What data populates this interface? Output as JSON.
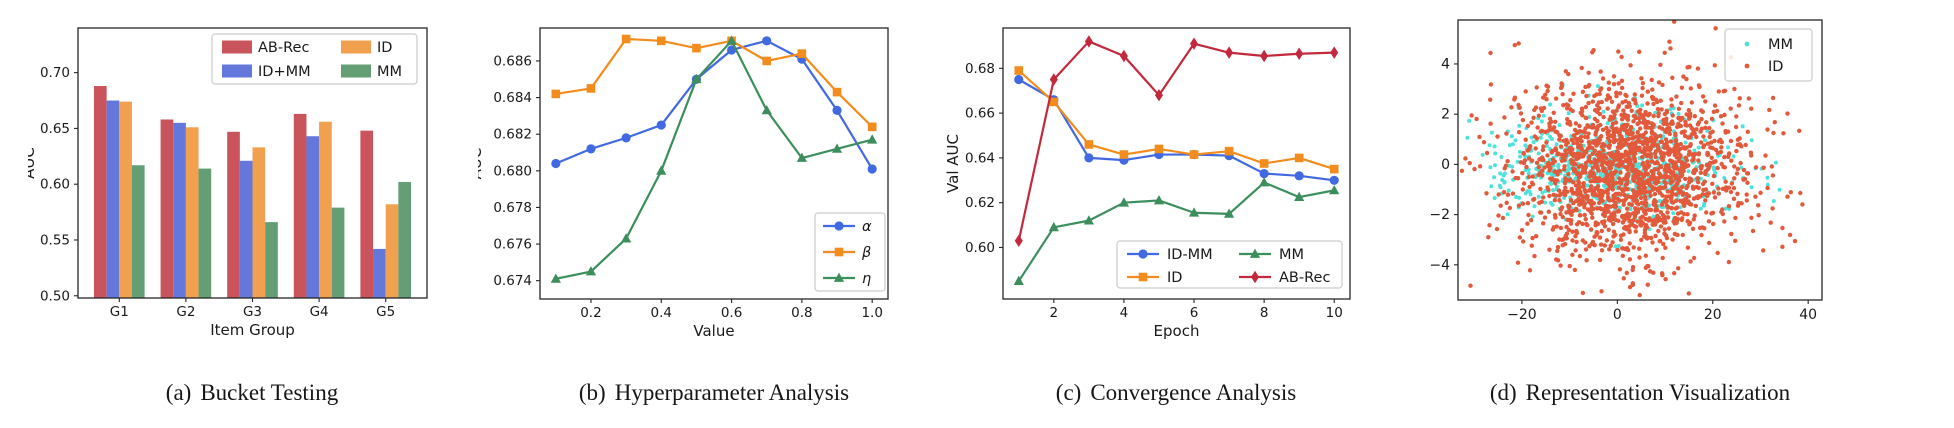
{
  "figure": {
    "background": "#ffffff"
  },
  "panels": [
    {
      "id": "a",
      "caption_label": "(a)",
      "caption_text": "Bucket Testing"
    },
    {
      "id": "b",
      "caption_label": "(b)",
      "caption_text": "Hyperparameter Analysis"
    },
    {
      "id": "c",
      "caption_label": "(c)",
      "caption_text": "Convergence Analysis"
    },
    {
      "id": "d",
      "caption_label": "(d)",
      "caption_text": "Representation Visualization"
    }
  ],
  "colors": {
    "bar_red": "#C9545C",
    "bar_blue": "#6478DC",
    "bar_orange": "#F0A04E",
    "bar_green": "#639E75",
    "line_blue": "#4169E1",
    "line_orange": "#F28C1C",
    "line_green": "#3C8F5C",
    "line_red": "#C3293C",
    "scatter_cyan": "#4DE3DA",
    "scatter_red": "#E25A3B",
    "spine": "#262626",
    "legend_border": "#cccccc"
  },
  "chart_data": [
    {
      "type": "bar",
      "title": "",
      "xlabel": "Item Group",
      "ylabel": "AUC",
      "categories": [
        "G1",
        "G2",
        "G3",
        "G4",
        "G5"
      ],
      "series": [
        {
          "name": "AB-Rec",
          "color": "#C9545C",
          "values": [
            0.688,
            0.658,
            0.647,
            0.663,
            0.648
          ]
        },
        {
          "name": "ID+MM",
          "color": "#6478DC",
          "values": [
            0.675,
            0.655,
            0.621,
            0.643,
            0.542
          ]
        },
        {
          "name": "ID",
          "color": "#F0A04E",
          "values": [
            0.674,
            0.651,
            0.633,
            0.656,
            0.582
          ]
        },
        {
          "name": "MM",
          "color": "#639E75",
          "values": [
            0.617,
            0.614,
            0.566,
            0.579,
            0.602
          ]
        }
      ],
      "ylim": [
        0.498,
        0.74
      ],
      "yticks": {
        "values": [
          0.5,
          0.55,
          0.6,
          0.65,
          0.7
        ],
        "labels": [
          "0.50",
          "0.55",
          "0.60",
          "0.65",
          "0.70"
        ]
      },
      "grid": false,
      "legend": {
        "position": "upper-right",
        "ncol": 2
      }
    },
    {
      "type": "line",
      "title": "",
      "xlabel": "Value",
      "ylabel": "AUC",
      "ylabel_clipped": true,
      "x": [
        0.1,
        0.2,
        0.3,
        0.4,
        0.5,
        0.6,
        0.7,
        0.8,
        0.9,
        1.0
      ],
      "xlim": [
        0.055,
        1.045
      ],
      "ylim": [
        0.673,
        0.6878
      ],
      "xticks": {
        "values": [
          0.2,
          0.4,
          0.6,
          0.8,
          1.0
        ],
        "labels": [
          "0.2",
          "0.4",
          "0.6",
          "0.8",
          "1.0"
        ]
      },
      "yticks": {
        "values": [
          0.674,
          0.676,
          0.678,
          0.68,
          0.682,
          0.684,
          0.686
        ],
        "labels": [
          "0.674",
          "0.676",
          "0.678",
          "0.680",
          "0.682",
          "0.684",
          "0.686"
        ]
      },
      "series": [
        {
          "name": "α",
          "italic": true,
          "color": "#4169E1",
          "marker": "circle",
          "values": [
            0.6804,
            0.6812,
            0.6818,
            0.6825,
            0.685,
            0.6866,
            0.6871,
            0.6861,
            0.6833,
            0.6801
          ]
        },
        {
          "name": "β",
          "italic": true,
          "color": "#F28C1C",
          "marker": "square",
          "values": [
            0.6842,
            0.6845,
            0.6872,
            0.6871,
            0.6867,
            0.6871,
            0.686,
            0.6864,
            0.6843,
            0.6824
          ]
        },
        {
          "name": "η",
          "italic": true,
          "color": "#3C8F5C",
          "marker": "triangle",
          "values": [
            0.6741,
            0.6745,
            0.6763,
            0.68,
            0.685,
            0.6871,
            0.6833,
            0.6807,
            0.6812,
            0.6817
          ]
        }
      ],
      "grid": false,
      "legend": {
        "position": "lower-right",
        "ncol": 1
      }
    },
    {
      "type": "line",
      "title": "",
      "xlabel": "Epoch",
      "ylabel": "Val AUC",
      "x": [
        1,
        2,
        3,
        4,
        5,
        6,
        7,
        8,
        9,
        10
      ],
      "xlim": [
        0.55,
        10.45
      ],
      "ylim": [
        0.577,
        0.698
      ],
      "xticks": {
        "values": [
          2,
          4,
          6,
          8,
          10
        ],
        "labels": [
          "2",
          "4",
          "6",
          "8",
          "10"
        ]
      },
      "yticks": {
        "values": [
          0.6,
          0.62,
          0.64,
          0.66,
          0.68
        ],
        "labels": [
          "0.60",
          "0.62",
          "0.64",
          "0.66",
          "0.68"
        ]
      },
      "series": [
        {
          "name": "ID-MM",
          "color": "#4169E1",
          "marker": "circle",
          "values": [
            0.675,
            0.666,
            0.64,
            0.639,
            0.6415,
            0.6415,
            0.641,
            0.633,
            0.632,
            0.63
          ]
        },
        {
          "name": "ID",
          "color": "#F28C1C",
          "marker": "square",
          "values": [
            0.679,
            0.665,
            0.646,
            0.6415,
            0.644,
            0.6415,
            0.643,
            0.6375,
            0.64,
            0.635
          ]
        },
        {
          "name": "MM",
          "color": "#3C8F5C",
          "marker": "triangle",
          "values": [
            0.585,
            0.609,
            0.612,
            0.62,
            0.621,
            0.6155,
            0.615,
            0.629,
            0.6225,
            0.6255
          ]
        },
        {
          "name": "AB-Rec",
          "color": "#C3293C",
          "marker": "diamond",
          "values": [
            0.603,
            0.675,
            0.692,
            0.6855,
            0.668,
            0.691,
            0.687,
            0.6855,
            0.6865,
            0.687
          ]
        }
      ],
      "grid": false,
      "legend": {
        "position": "lower-center",
        "ncol": 2
      }
    },
    {
      "type": "scatter",
      "title": "",
      "xlabel": "",
      "ylabel": "",
      "xlim": [
        -33.4,
        42.9
      ],
      "ylim": [
        -5.4,
        5.75
      ],
      "xticks": {
        "values": [
          -20,
          0,
          20,
          40
        ],
        "labels": [
          "−20",
          "0",
          "20",
          "40"
        ]
      },
      "yticks": {
        "values": [
          -4,
          -2,
          0,
          2,
          4
        ],
        "labels": [
          "−4",
          "−2",
          "0",
          "2",
          "4"
        ]
      },
      "clusters": [
        {
          "name": "MM",
          "color": "#4DE3DA",
          "n": 650,
          "x_mean": -1.5,
          "x_std": 11.5,
          "y_mean": -0.1,
          "y_std": 1.0,
          "radius": 2.0,
          "seed": 7
        },
        {
          "name": "ID",
          "color": "#E25A3B",
          "n": 1800,
          "x_mean": 2.5,
          "x_std": 12.5,
          "y_mean": -0.2,
          "y_std": 1.75,
          "radius": 2.2,
          "seed": 13
        }
      ],
      "grid": false,
      "legend": {
        "position": "upper-right",
        "ncol": 1
      }
    }
  ]
}
